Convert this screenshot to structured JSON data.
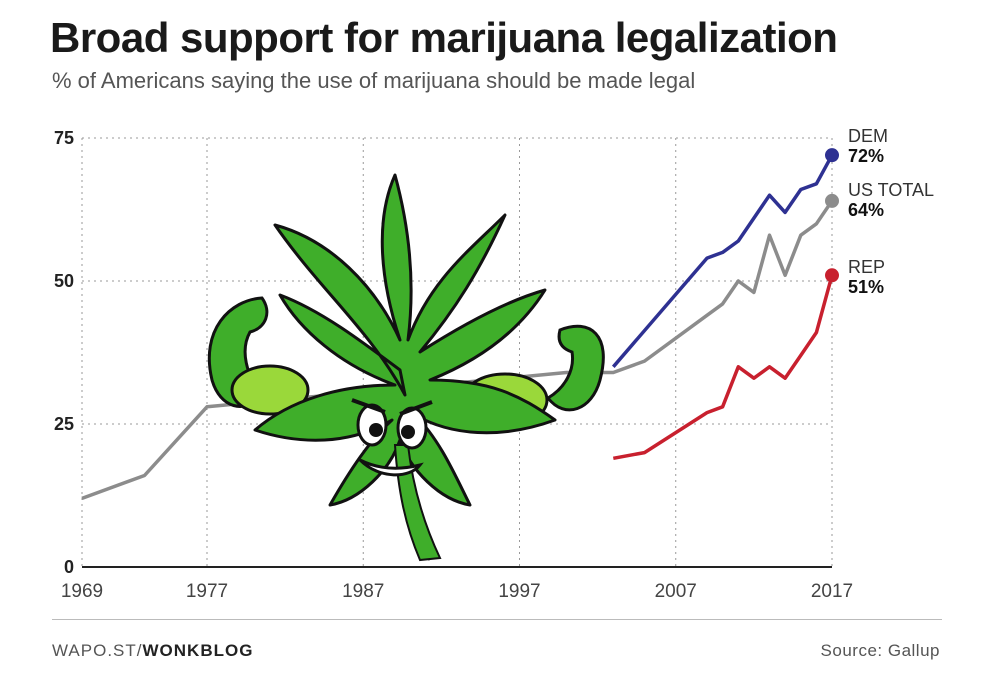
{
  "title": "Broad support for marijuana legalization",
  "subtitle": "% of Americans saying the use of marijuana should be made legal",
  "footer": {
    "credit_prefix": "WAPO.ST/",
    "credit_bold": "WONKBLOG",
    "source": "Source: Gallup"
  },
  "chart_data": {
    "type": "line",
    "title": "Broad support for marijuana legalization",
    "subtitle": "% of Americans saying the use of marijuana should be made legal",
    "xlim": [
      1969,
      2017
    ],
    "ylim": [
      0,
      75
    ],
    "x_ticks": [
      "1969",
      "1977",
      "1987",
      "1997",
      "2007",
      "2017"
    ],
    "y_ticks": [
      "0",
      "25",
      "50",
      "75"
    ],
    "grid": true,
    "series": [
      {
        "name": "US TOTAL",
        "end_label": "64%",
        "color": "#8c8c8c",
        "x": [
          1969,
          1973,
          1977,
          2000,
          2003,
          2005,
          2009,
          2010,
          2011,
          2012,
          2013,
          2014,
          2015,
          2016,
          2017
        ],
        "y": [
          12,
          16,
          28,
          34,
          34,
          36,
          44,
          46,
          50,
          48,
          58,
          51,
          58,
          60,
          64
        ]
      },
      {
        "name": "DEM",
        "end_label": "72%",
        "color": "#2e3192",
        "x": [
          2003,
          2009,
          2010,
          2011,
          2013,
          2014,
          2015,
          2016,
          2017
        ],
        "y": [
          35,
          54,
          55,
          57,
          65,
          62,
          66,
          67,
          72
        ]
      },
      {
        "name": "REP",
        "end_label": "51%",
        "color": "#c8202e",
        "x": [
          2003,
          2005,
          2009,
          2010,
          2011,
          2012,
          2013,
          2014,
          2015,
          2016,
          2017
        ],
        "y": [
          19,
          20,
          27,
          28,
          35,
          33,
          35,
          33,
          37,
          41,
          51
        ]
      }
    ],
    "illustration": "flexing-cannabis-leaf-cartoon"
  }
}
